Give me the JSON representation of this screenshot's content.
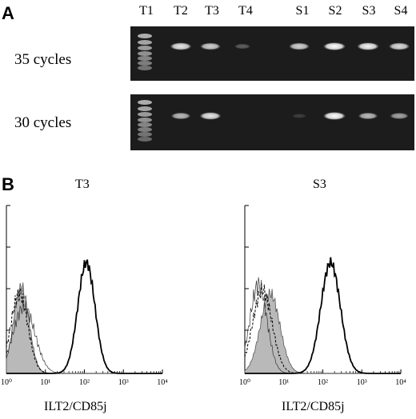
{
  "panel_a": {
    "letter": "A",
    "lanes": [
      "T1",
      "T2",
      "T3",
      "T4",
      "S1",
      "S2",
      "S3",
      "S4"
    ],
    "rows": [
      {
        "label": "35 cycles",
        "band_intensity": [
          0,
          0.9,
          0.8,
          0.3,
          0.8,
          1.0,
          0.95,
          0.85
        ]
      },
      {
        "label": "30 cycles",
        "band_intensity": [
          0,
          0.7,
          0.9,
          0,
          0.15,
          1.0,
          0.7,
          0.6
        ]
      }
    ]
  },
  "panel_b": {
    "letter": "B",
    "histograms": [
      {
        "title": "T3",
        "xlabel": "ILT2/CD85j",
        "tick_labels": [
          "10⁰",
          "10¹",
          "10²",
          "10³",
          "10⁴"
        ]
      },
      {
        "title": "S3",
        "xlabel": "ILT2/CD85j",
        "tick_labels": [
          "10⁰",
          "10¹",
          "10²",
          "10³",
          "10⁴"
        ]
      }
    ]
  }
}
